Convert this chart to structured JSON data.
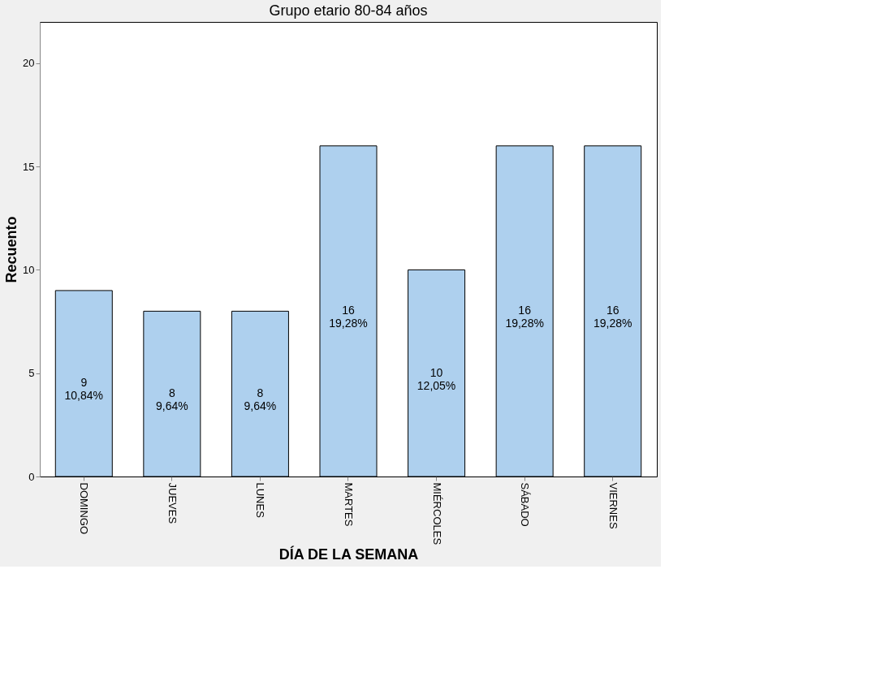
{
  "chart_data": {
    "type": "bar",
    "title": "Grupo etario 80-84 años",
    "xlabel": "DÍA DE LA SEMANA",
    "ylabel": "Recuento",
    "categories": [
      "DOMINGO",
      "JUEVES",
      "LUNES",
      "MARTES",
      "MIÉRCOLES",
      "SÁBADO",
      "VIERNES"
    ],
    "values": [
      9,
      8,
      8,
      16,
      10,
      16,
      16
    ],
    "value_labels": [
      "9\n10,84%",
      "8\n9,64%",
      "8\n9,64%",
      "16\n19,28%",
      "10\n12,05%",
      "16\n19,28%",
      "16\n19,28%"
    ],
    "color": "#aed0ee",
    "ylim": [
      0,
      22
    ],
    "yticks": [
      0,
      5,
      10,
      15,
      20
    ],
    "grid": false
  }
}
